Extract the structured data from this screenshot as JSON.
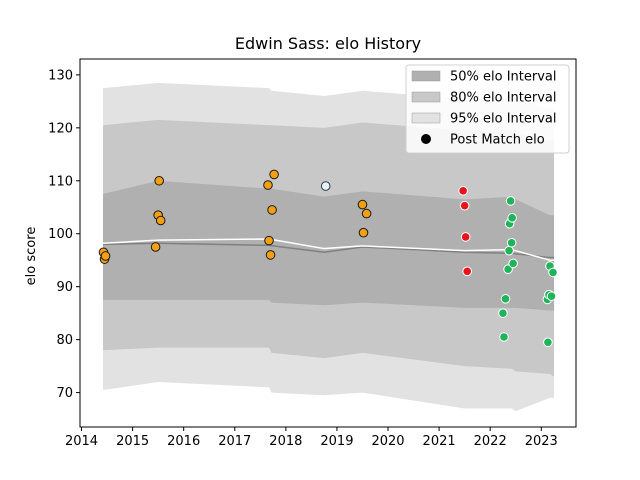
{
  "chart_data": {
    "type": "scatter",
    "title": "Edwin Sass: elo History",
    "xlabel": "",
    "ylabel": "elo score",
    "xlim": [
      2013.97,
      2023.68
    ],
    "ylim": [
      63.5,
      133.0
    ],
    "x_ticks": [
      2014,
      2015,
      2016,
      2017,
      2018,
      2019,
      2020,
      2021,
      2022,
      2023
    ],
    "x_tick_labels": [
      "2014",
      "2015",
      "2016",
      "2017",
      "2018",
      "2019",
      "2020",
      "2021",
      "2022",
      "2023"
    ],
    "y_ticks": [
      70,
      80,
      90,
      100,
      110,
      120,
      130
    ],
    "y_tick_labels": [
      "70",
      "80",
      "90",
      "100",
      "110",
      "120",
      "130"
    ],
    "grid": false,
    "legend_position": "top-right",
    "legend": [
      {
        "label": "50% elo Interval",
        "kind": "band",
        "color": "#b0b0b0"
      },
      {
        "label": "80% elo Interval",
        "kind": "band",
        "color": "#c8c8c8"
      },
      {
        "label": "95% elo Interval",
        "kind": "band",
        "color": "#e2e2e2"
      },
      {
        "label": "Post Match elo",
        "kind": "marker",
        "color": "#000000"
      }
    ],
    "bands": [
      {
        "name": "95% elo Interval",
        "color": "#e2e2e2",
        "x": [
          2014.42,
          2015.5,
          2017.67,
          2017.72,
          2018.75,
          2019.5,
          2021.5,
          2022.42,
          2022.5,
          2023.17,
          2023.25
        ],
        "upper": [
          127.5,
          128.5,
          127.5,
          127.0,
          126.0,
          127.0,
          125.5,
          126.0,
          125.5,
          123.5,
          124.0
        ],
        "lower": [
          70.5,
          72.0,
          71.0,
          70.0,
          69.5,
          70.0,
          67.0,
          67.0,
          66.5,
          69.0,
          69.0
        ]
      },
      {
        "name": "80% elo Interval",
        "color": "#c8c8c8",
        "x": [
          2014.42,
          2015.5,
          2017.67,
          2017.72,
          2018.75,
          2019.5,
          2021.5,
          2022.42,
          2022.5,
          2023.17,
          2023.25
        ],
        "upper": [
          120.5,
          121.5,
          120.5,
          120.5,
          120.0,
          121.0,
          119.5,
          119.5,
          119.0,
          117.5,
          118.0
        ],
        "lower": [
          78.0,
          78.5,
          78.5,
          77.5,
          76.5,
          77.5,
          75.0,
          74.5,
          74.0,
          73.5,
          73.0
        ]
      },
      {
        "name": "50% elo Interval",
        "color": "#b0b0b0",
        "x": [
          2014.42,
          2015.5,
          2017.67,
          2017.72,
          2018.75,
          2019.5,
          2021.5,
          2022.42,
          2022.5,
          2023.17,
          2023.25
        ],
        "upper": [
          107.5,
          110.0,
          108.5,
          108.5,
          107.0,
          108.0,
          106.5,
          107.0,
          106.5,
          103.5,
          103.5
        ],
        "lower": [
          87.5,
          87.5,
          87.5,
          87.0,
          86.5,
          87.0,
          86.0,
          86.0,
          86.0,
          85.5,
          85.5
        ]
      }
    ],
    "lines": [
      {
        "name": "median",
        "color": "#808080",
        "width": 1.5,
        "x": [
          2014.42,
          2015.5,
          2017.67,
          2018.75,
          2019.5,
          2021.5,
          2022.42,
          2023.17,
          2023.25
        ],
        "y": [
          98.0,
          98.2,
          97.8,
          96.5,
          97.5,
          96.5,
          96.3,
          95.5,
          95.5
        ]
      },
      {
        "name": "mean",
        "color": "#ffffff",
        "width": 1.5,
        "x": [
          2014.42,
          2015.5,
          2017.67,
          2018.75,
          2019.5,
          2021.5,
          2022.42,
          2023.17,
          2023.25
        ],
        "y": [
          98.2,
          98.8,
          99.0,
          97.2,
          97.7,
          96.8,
          97.0,
          95.0,
          95.0
        ]
      }
    ],
    "series": [
      {
        "color": "#f5a011",
        "edge": "#1a1a1a",
        "points": [
          [
            2014.43,
            96.5
          ],
          [
            2014.45,
            95.2
          ],
          [
            2014.47,
            95.8
          ],
          [
            2015.45,
            97.5
          ],
          [
            2015.5,
            103.5
          ],
          [
            2015.52,
            110.0
          ],
          [
            2015.55,
            102.5
          ],
          [
            2017.65,
            109.2
          ],
          [
            2017.67,
            98.7
          ],
          [
            2017.7,
            96.0
          ],
          [
            2017.73,
            104.5
          ],
          [
            2017.77,
            111.2
          ],
          [
            2019.5,
            105.5
          ],
          [
            2019.52,
            100.2
          ],
          [
            2019.58,
            103.8
          ]
        ]
      },
      {
        "color": "#e8f2f6",
        "edge": "#2c3e50",
        "points": [
          [
            2018.78,
            109.0
          ]
        ]
      },
      {
        "color": "#e8131b",
        "edge": "#ffffff",
        "points": [
          [
            2021.47,
            108.1
          ],
          [
            2021.5,
            105.3
          ],
          [
            2021.52,
            99.4
          ],
          [
            2021.55,
            92.9
          ]
        ]
      },
      {
        "color": "#20b45a",
        "edge": "#ffffff",
        "points": [
          [
            2022.25,
            85.0
          ],
          [
            2022.27,
            80.5
          ],
          [
            2022.3,
            87.7
          ],
          [
            2022.35,
            93.3
          ],
          [
            2022.37,
            96.8
          ],
          [
            2022.38,
            101.9
          ],
          [
            2022.4,
            106.2
          ],
          [
            2022.42,
            98.3
          ],
          [
            2022.43,
            103.0
          ],
          [
            2022.45,
            94.4
          ],
          [
            2023.12,
            87.6
          ],
          [
            2023.13,
            79.5
          ],
          [
            2023.15,
            88.5
          ],
          [
            2023.17,
            93.9
          ],
          [
            2023.2,
            88.2
          ],
          [
            2023.23,
            92.7
          ]
        ]
      }
    ]
  }
}
